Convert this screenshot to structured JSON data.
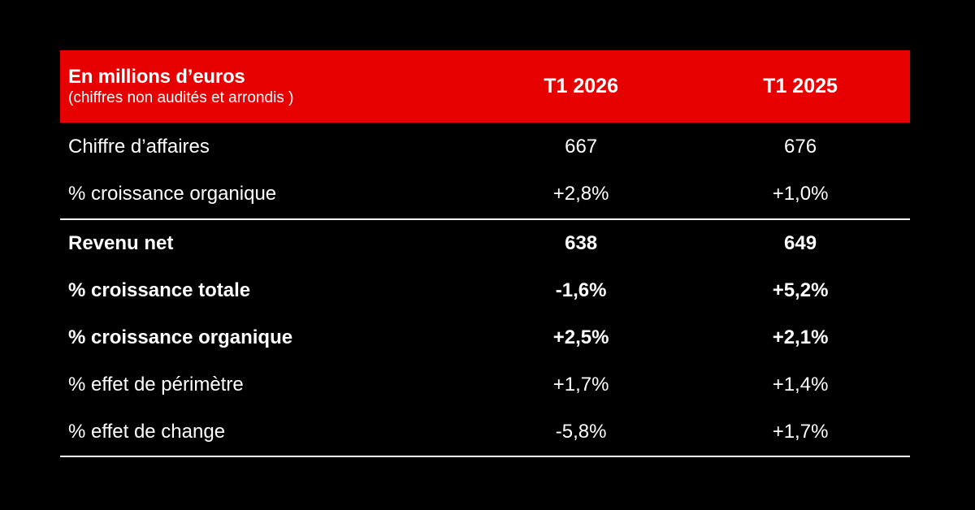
{
  "header": {
    "title": "En millions d’euros",
    "subtitle": "(chiffres non audités et arrondis )",
    "col1": "T1 2026",
    "col2": "T1 2025"
  },
  "rows": [
    {
      "label": "Chiffre d’affaires",
      "v1": "667",
      "v2": "676"
    },
    {
      "label": "% croissance organique",
      "v1": "+2,8%",
      "v2": "+1,0%"
    },
    {
      "label": "Revenu net",
      "v1": "638",
      "v2": "649"
    },
    {
      "label": "% croissance totale",
      "v1": "-1,6%",
      "v2": "+5,2%"
    },
    {
      "label": "% croissance organique",
      "v1": "+2,5%",
      "v2": "+2,1%"
    },
    {
      "label": "% effet de périmètre",
      "v1": "+1,7%",
      "v2": "+1,4%"
    },
    {
      "label": "% effet de change",
      "v1": "-5,8%",
      "v2": "+1,7%"
    }
  ],
  "colors": {
    "header_background": "#e60000",
    "background": "#000000",
    "text": "#ffffff"
  }
}
